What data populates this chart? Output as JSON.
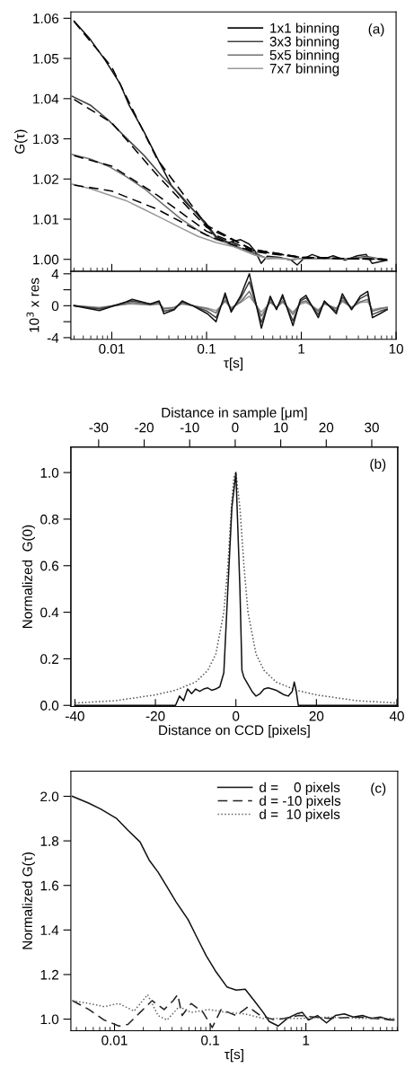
{
  "chart_data": [
    {
      "type": "line",
      "ylabel": "G(τ)",
      "annotations": [
        "(a)"
      ],
      "legend": "top right",
      "log": "x",
      "tick_labels": "y",
      "xlim": [
        0.0037,
        10
      ],
      "xticks": [
        0.01,
        0.1,
        1,
        10
      ],
      "ylim": [
        0.997,
        1.0616
      ],
      "yticks": [
        {
          "value": 1.0,
          "label": "1.00"
        },
        {
          "value": 1.01,
          "label": "1.01"
        },
        {
          "value": 1.02,
          "label": "1.02"
        },
        {
          "value": 1.03,
          "label": "1.03"
        },
        {
          "value": 1.04,
          "label": "1.04"
        },
        {
          "value": 1.05,
          "label": "1.05"
        },
        {
          "value": 1.06,
          "label": "1.06"
        }
      ],
      "series": [
        {
          "name": "1x1 binning",
          "color": "#111111",
          "x": [
            0.004,
            0.0059,
            0.0085,
            0.0123,
            0.0152,
            0.0219,
            0.0316,
            0.0427,
            0.0617,
            0.0955,
            0.126,
            0.17,
            0.229,
            0.282,
            0.326,
            0.377,
            0.437,
            0.583,
            0.782,
            0.904,
            1.05,
            1.3,
            1.74,
            2.17,
            2.9,
            3.89,
            4.84,
            5.58,
            8.05
          ],
          "values": [
            1.0593,
            1.0548,
            1.0496,
            1.0436,
            1.0384,
            1.0317,
            1.0243,
            1.0183,
            1.0139,
            1.0094,
            1.0057,
            1.0042,
            1.0049,
            1.0038,
            1.002,
            0.999,
            1.0008,
            1.0005,
            0.9998,
            0.9986,
            1.0001,
            1.0012,
            1.0001,
            1.0009,
            0.9998,
            1.0009,
            1.0012,
            0.999,
            0.9998
          ]
        },
        {
          "name": "3x3 binning",
          "color": "#404040",
          "x": [
            0.00382,
            0.00592,
            0.00917,
            0.0142,
            0.022,
            0.034,
            0.0527,
            0.0817,
            0.126,
            0.196,
            0.326,
            0.437,
            0.583,
            0.782,
            1.05,
            1.74,
            2.9,
            4.84,
            8.05
          ],
          "values": [
            1.0406,
            1.0384,
            1.0347,
            1.0302,
            1.0258,
            1.0206,
            1.0161,
            1.0109,
            1.0054,
            1.0032,
            1.0015,
            1.0002,
            1.0004,
            0.9999,
            1.0003,
            1.0002,
            1.0001,
            1.0007,
            0.9998
          ]
        },
        {
          "name": "5x5 binning",
          "color": "#707070",
          "x": [
            0.00382,
            0.00592,
            0.00917,
            0.0142,
            0.022,
            0.034,
            0.0527,
            0.0817,
            0.126,
            0.196,
            0.326,
            0.437,
            0.583,
            0.782,
            1.05,
            1.74,
            2.9,
            4.84,
            8.05
          ],
          "values": [
            1.0261,
            1.025,
            1.0232,
            1.0206,
            1.0176,
            1.0139,
            1.0102,
            1.0072,
            1.0049,
            1.0035,
            1.0012,
            1.0003,
            1.0003,
            1.0,
            1.0003,
            1.0002,
            1.0001,
            1.0005,
            0.9999
          ]
        },
        {
          "name": "7x7 binning",
          "color": "#999999",
          "x": [
            0.00382,
            0.00592,
            0.00917,
            0.0142,
            0.022,
            0.034,
            0.0527,
            0.0817,
            0.126,
            0.196,
            0.326,
            0.437,
            0.583,
            0.782,
            1.05,
            1.74,
            2.9,
            4.84,
            8.05
          ],
          "values": [
            1.0187,
            1.0176,
            1.0161,
            1.0146,
            1.0124,
            1.0102,
            1.0079,
            1.0057,
            1.0042,
            1.0031,
            1.001,
            1.0003,
            1.0002,
            1.0,
            1.0002,
            1.0002,
            1.0001,
            1.0004,
            0.9999
          ]
        },
        {
          "color": "#000000",
          "line_style": "dashed",
          "x": [
            0.004,
            0.01,
            0.03,
            0.1,
            0.3,
            1,
            3,
            8
          ],
          "values": [
            1.0592,
            1.0478,
            1.025,
            1.0085,
            1.0025,
            1.0005,
            1.0002,
            1.0
          ]
        },
        {
          "color": "#000000",
          "line_style": "dashed",
          "x": [
            0.004,
            0.01,
            0.03,
            0.1,
            0.3,
            1,
            3,
            8
          ],
          "values": [
            1.0398,
            1.034,
            1.021,
            1.008,
            1.0025,
            1.0005,
            1.0002,
            1.0
          ]
        },
        {
          "color": "#000000",
          "line_style": "dashed",
          "x": [
            0.004,
            0.01,
            0.03,
            0.1,
            0.3,
            1,
            3,
            8
          ],
          "values": [
            1.0258,
            1.0232,
            1.016,
            1.007,
            1.0022,
            1.0005,
            1.0002,
            1.0
          ]
        },
        {
          "color": "#000000",
          "line_style": "dashed",
          "x": [
            0.004,
            0.01,
            0.03,
            0.1,
            0.3,
            1,
            3,
            8
          ],
          "values": [
            1.0185,
            1.017,
            1.0125,
            1.006,
            1.002,
            1.0004,
            1.0002,
            1.0
          ]
        }
      ]
    },
    {
      "type": "line",
      "xlabel": "τ[s]",
      "ylabel": "10$^{3}$ x res",
      "log": "x",
      "xlim": [
        0.0037,
        10
      ],
      "xticks": [
        0.01,
        0.1,
        1,
        10
      ],
      "ylim": [
        -4.2,
        4.3
      ],
      "yticks": [
        -4,
        {
          "value": -2,
          "label": null
        },
        0,
        {
          "value": 2,
          "label": null
        },
        4
      ],
      "x": [
        0.004,
        0.0074,
        0.0142,
        0.0164,
        0.0255,
        0.0316,
        0.0354,
        0.0457,
        0.0552,
        0.0714,
        0.102,
        0.126,
        0.157,
        0.182,
        0.228,
        0.283,
        0.379,
        0.47,
        0.547,
        0.634,
        0.816,
        0.979,
        1.12,
        1.51,
        1.75,
        2.34,
        2.71,
        3.39,
        4.19,
        5.02,
        5.63,
        6.75,
        8.05
      ],
      "series": [
        {
          "color": "#999999",
          "values": [
            0,
            -0.2,
            0.2,
            0.2,
            0.1,
            0.2,
            -0.3,
            -0.2,
            0.2,
            0,
            -0.3,
            -0.6,
            0.5,
            -0.2,
            0.4,
            1.2,
            -0.8,
            0.4,
            -0.2,
            0.4,
            -0.8,
            0.2,
            0.4,
            -0.5,
            0.2,
            -0.3,
            0.5,
            -0.2,
            0.4,
            0.5,
            -0.5,
            -0.3,
            -0.2
          ]
        },
        {
          "color": "#707070",
          "values": [
            0,
            -0.3,
            0.2,
            0.4,
            0.1,
            0.3,
            -0.4,
            -0.2,
            0.3,
            0,
            -0.4,
            -0.9,
            0.7,
            -0.4,
            0.5,
            1.8,
            -1.3,
            0.5,
            -0.2,
            0.6,
            -1.1,
            0.4,
            0.6,
            -0.7,
            0.3,
            -0.4,
            0.7,
            -0.2,
            0.5,
            0.8,
            -0.7,
            -0.4,
            -0.2
          ]
        },
        {
          "color": "#404040",
          "values": [
            0,
            -0.4,
            0.4,
            0.6,
            0.2,
            0.5,
            -0.7,
            -0.4,
            0.5,
            0,
            -0.7,
            -1.5,
            1.2,
            -0.6,
            0.9,
            3.0,
            -2.1,
            0.9,
            -0.4,
            1.1,
            -1.9,
            0.6,
            1.0,
            -1.1,
            0.5,
            -0.7,
            1.1,
            -0.4,
            0.9,
            1.4,
            -1.1,
            -0.7,
            -0.4
          ]
        },
        {
          "color": "#111111",
          "values": [
            0,
            -0.6,
            0.5,
            0.8,
            0.2,
            0.6,
            -1.0,
            -0.5,
            0.6,
            0,
            -1.0,
            -2.0,
            1.6,
            -0.8,
            1.2,
            4.0,
            -2.8,
            1.2,
            -0.5,
            1.4,
            -2.5,
            0.8,
            1.3,
            -1.5,
            0.6,
            -1.0,
            1.5,
            -0.5,
            1.2,
            1.8,
            -1.5,
            -1.0,
            -0.5
          ]
        }
      ]
    },
    {
      "type": "line",
      "xlabel": "Distance on CCD [pixels]",
      "x2label": "Distance in sample [μm]",
      "ylabel": "Normalized  G(0)",
      "annotations": [
        "(b)"
      ],
      "xlim": [
        -41,
        40.2
      ],
      "xticks": [
        -40,
        -20,
        0,
        20,
        40
      ],
      "x2lim": [
        -36.1,
        35.7
      ],
      "x2ticks": [
        -30,
        -20,
        -10,
        0,
        10,
        20,
        30
      ],
      "ylim": [
        -0.005,
        1.11
      ],
      "yticks": [
        {
          "value": 0,
          "label": "0.0"
        },
        {
          "value": 0.2,
          "label": "0.2"
        },
        {
          "value": 0.4,
          "label": "0.4"
        },
        {
          "value": 0.6,
          "label": "0.6"
        },
        {
          "value": 0.8,
          "label": "0.8"
        },
        {
          "value": 1.0,
          "label": "1.0"
        }
      ],
      "series": [
        {
          "color": "#555555",
          "line_style": "dotted",
          "x": [
            -40,
            -30,
            -20,
            -15,
            -10,
            -7,
            -5,
            -3,
            -2,
            -1,
            -0.5,
            0,
            1,
            2,
            3,
            5,
            7,
            10,
            15,
            20,
            30,
            40
          ],
          "values": [
            0.01,
            0.02,
            0.045,
            0.065,
            0.1,
            0.15,
            0.22,
            0.4,
            0.6,
            0.88,
            0.98,
            1.0,
            0.85,
            0.6,
            0.4,
            0.22,
            0.15,
            0.1,
            0.065,
            0.045,
            0.02,
            0.01
          ]
        },
        {
          "color": "#111111",
          "x": [
            -40,
            -15,
            -14,
            -13,
            -12,
            -11,
            -10,
            -9,
            -8,
            -7,
            -6,
            -5,
            -4,
            -3,
            -2,
            -1,
            0,
            1,
            1.5,
            2,
            3,
            4,
            5,
            6,
            7,
            8,
            9,
            10,
            11,
            12,
            13,
            14,
            14.5,
            15,
            15.5,
            40
          ],
          "values": [
            0,
            0,
            0.04,
            0.02,
            0.07,
            0.05,
            0.07,
            0.06,
            0.07,
            0.075,
            0.065,
            0.07,
            0.08,
            0.14,
            0.5,
            0.85,
            1.0,
            0.5,
            0.15,
            0.12,
            0.09,
            0.06,
            0.04,
            0.05,
            0.07,
            0.075,
            0.07,
            0.065,
            0.055,
            0.045,
            0.04,
            0.06,
            0.1,
            0.06,
            0,
            0
          ]
        }
      ]
    },
    {
      "type": "line",
      "xlabel": "τ[s]",
      "ylabel": "Normalized G(τ)",
      "annotations": [
        "(c)"
      ],
      "legend": "top right",
      "log": "x",
      "xlim": [
        0.0035,
        9.1
      ],
      "xticks": [
        0.01,
        0.1,
        1
      ],
      "ylim": [
        0.948,
        2.113
      ],
      "yticks": [
        {
          "value": 1.0,
          "label": "1.0"
        },
        {
          "value": 1.2,
          "label": "1.2"
        },
        {
          "value": 1.4,
          "label": "1.4"
        },
        {
          "value": 1.6,
          "label": "1.6"
        },
        {
          "value": 1.8,
          "label": "1.8"
        },
        {
          "value": 2.0,
          "label": "2.0"
        }
      ],
      "series": [
        {
          "name": "d =    0 pixels",
          "color": "#111111",
          "line_style": "solid",
          "x": [
            0.00363,
            0.00541,
            0.00723,
            0.0104,
            0.0138,
            0.0185,
            0.023,
            0.0285,
            0.0354,
            0.044,
            0.0588,
            0.073,
            0.0907,
            0.113,
            0.15,
            0.187,
            0.232,
            0.288,
            0.358,
            0.414,
            0.514,
            0.638,
            0.794,
            0.917,
            1.06,
            1.32,
            1.64,
            2.03,
            2.52,
            3.13,
            3.89,
            4.83,
            6.01,
            7.46,
            8.32
          ],
          "values": [
            2.0,
            1.969,
            1.942,
            1.902,
            1.848,
            1.795,
            1.714,
            1.66,
            1.593,
            1.526,
            1.446,
            1.365,
            1.285,
            1.217,
            1.144,
            1.13,
            1.134,
            1.083,
            1.03,
            0.989,
            0.969,
            1.003,
            1.023,
            1.03,
            0.996,
            1.016,
            0.983,
            1.016,
            1.023,
            1.009,
            1.016,
            1.003,
            1.009,
            0.996,
            0.996
          ]
        },
        {
          "name": "d = -10 pixels",
          "color": "#222222",
          "line_style": "dashed",
          "x": [
            0.00363,
            0.00541,
            0.0078,
            0.0111,
            0.0138,
            0.0185,
            0.0247,
            0.033,
            0.041,
            0.0457,
            0.0509,
            0.0632,
            0.0843,
            0.105,
            0.13,
            0.187,
            0.25,
            0.333,
            0.478,
            0.85,
            1.77,
            3.6,
            8.32
          ],
          "values": [
            1.083,
            1.043,
            0.996,
            0.969,
            0.976,
            1.03,
            1.083,
            1.043,
            1.083,
            1.11,
            1.016,
            1.07,
            1.03,
            0.962,
            1.043,
            1.016,
            1.056,
            1.016,
            0.996,
            1.016,
            1.003,
            1.009,
            0.996
          ]
        },
        {
          "name": "d =  10 pixels",
          "color": "#666666",
          "line_style": "dotted",
          "x": [
            0.00363,
            0.00541,
            0.0078,
            0.0111,
            0.016,
            0.0222,
            0.0285,
            0.0354,
            0.0474,
            0.0632,
            0.0974,
            0.15,
            0.232,
            0.358,
            0.85,
            1.77,
            3.6,
            8.32
          ],
          "values": [
            1.083,
            1.07,
            1.056,
            1.07,
            1.036,
            1.11,
            1.016,
            0.996,
            1.056,
            1.03,
            1.043,
            1.03,
            1.023,
            1.003,
            1.003,
            1.009,
            1.003,
            1.003
          ]
        }
      ]
    }
  ]
}
